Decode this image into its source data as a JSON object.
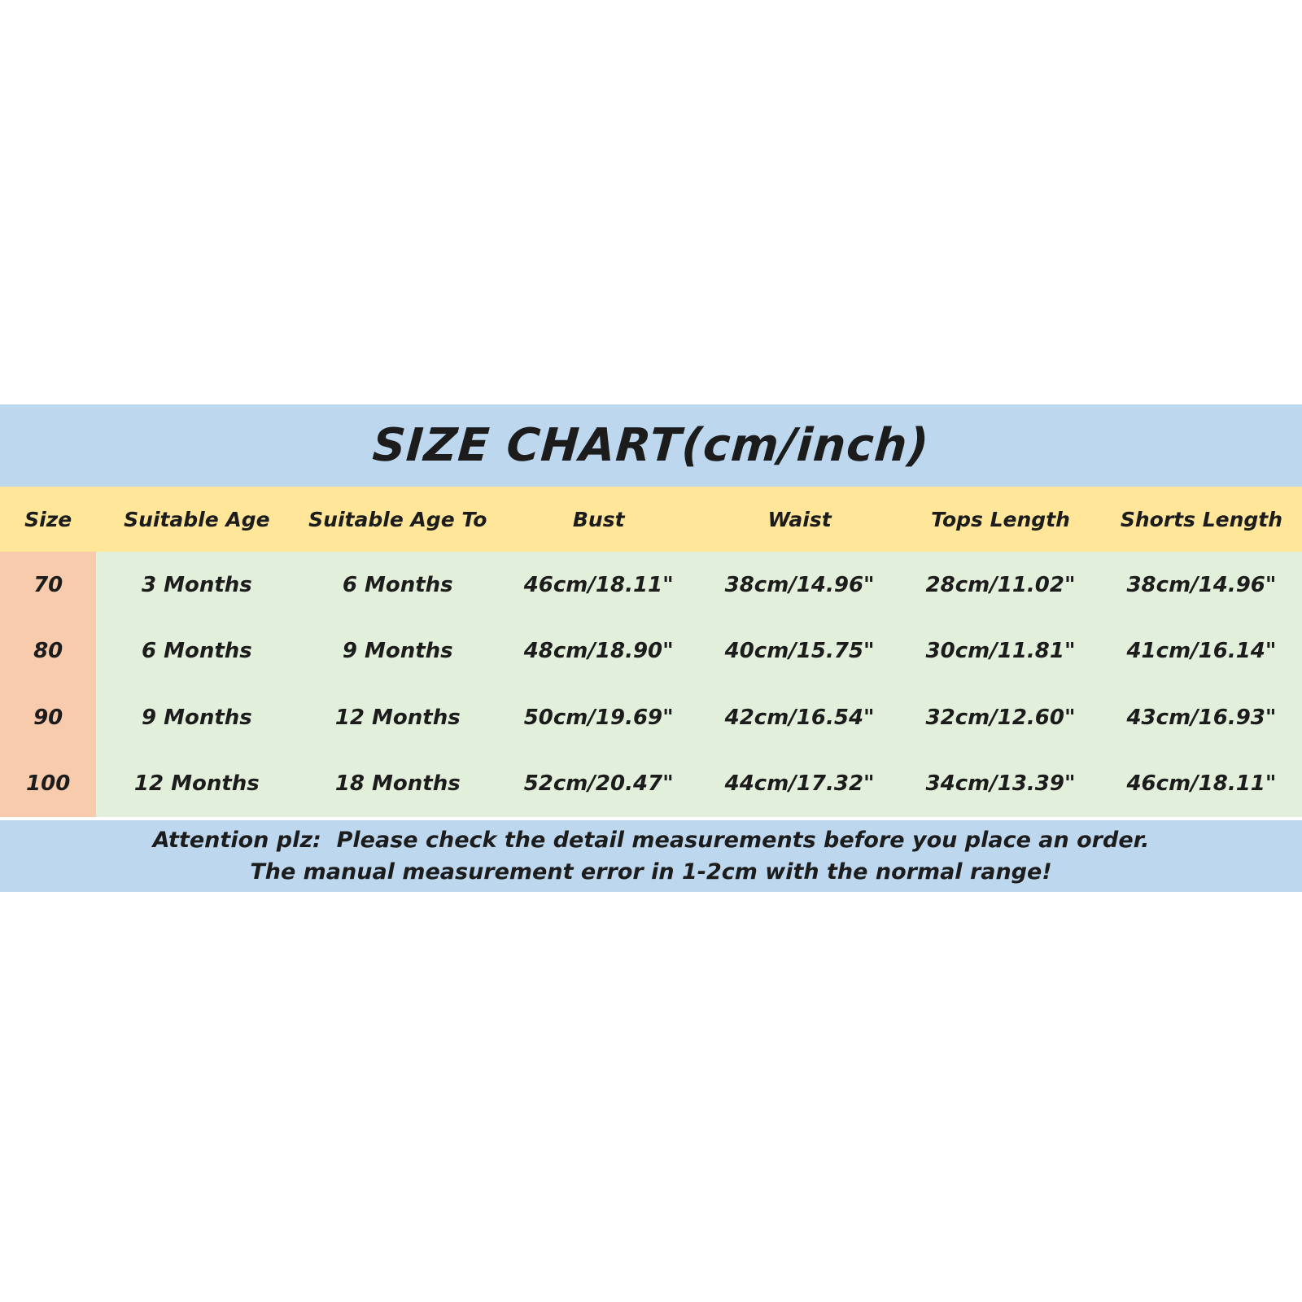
{
  "chart_data": {
    "type": "table",
    "title": "SIZE CHART(cm/inch)",
    "columns": [
      "Size",
      "Suitable Age",
      "Suitable Age To",
      "Bust",
      "Waist",
      "Tops Length",
      "Shorts Length"
    ],
    "rows": [
      [
        "70",
        "3 Months",
        "6 Months",
        "46cm/18.11\"",
        "38cm/14.96\"",
        "28cm/11.02\"",
        "38cm/14.96\""
      ],
      [
        "80",
        "6 Months",
        "9 Months",
        "48cm/18.90\"",
        "40cm/15.75\"",
        "30cm/11.81\"",
        "41cm/16.14\""
      ],
      [
        "90",
        "9 Months",
        "12 Months",
        "50cm/19.69\"",
        "42cm/16.54\"",
        "32cm/12.60\"",
        "43cm/16.93\""
      ],
      [
        "100",
        "12 Months",
        "18 Months",
        "52cm/20.47\"",
        "44cm/17.32\"",
        "34cm/13.39\"",
        "46cm/18.11\""
      ]
    ],
    "notes": [
      "Attention plz:  Please check the detail measurements before you place an order.",
      "The manual measurement error in 1-2cm with the normal range!"
    ],
    "layout": {
      "legend_position": "none",
      "grid": false
    }
  },
  "colors": {
    "title_band": "#BDD7EE",
    "header_band": "#FFE699",
    "size_column": "#F8CBAD",
    "data_cells": "#E2EFDA",
    "footer_band": "#BDD7EE",
    "text": "#1c1c1c",
    "page_background": "#ffffff"
  }
}
